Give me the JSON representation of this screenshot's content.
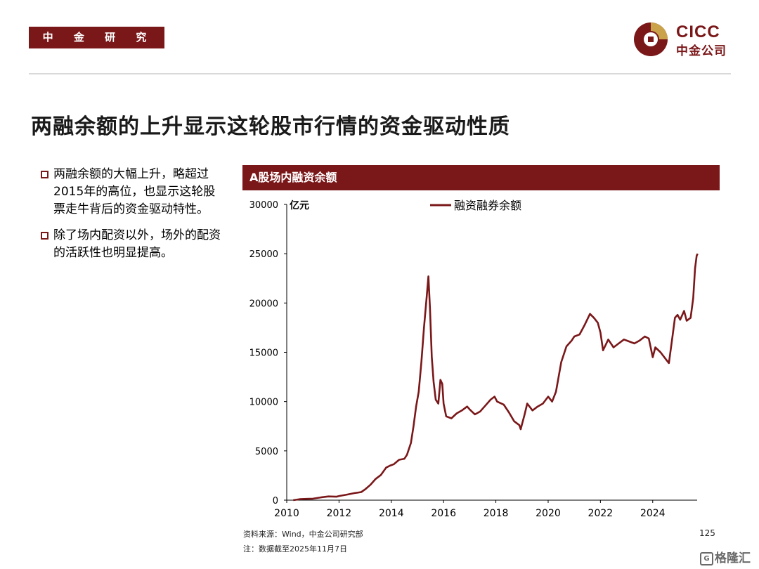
{
  "header": {
    "department": "中 金 研 究 部",
    "logo_en": "CICC",
    "logo_cn": "中金公司",
    "logo_color": "#7a1719"
  },
  "title": "两融余额的上升显示这轮股市行情的资金驱动性质",
  "bullets": [
    "两融余额的大幅上升，略超过2015年的高位，也显示这轮股票走牛背后的资金驱动特性。",
    "除了场内配资以外，场外的配资的活跃性也明显提高。"
  ],
  "chart_header": "A股场内融资余额",
  "chart_data": {
    "type": "line",
    "title": "A股场内融资余额",
    "ylabel": "亿元",
    "xlabel": "",
    "ylim": [
      0,
      30000
    ],
    "xlim": [
      2010,
      2025.7
    ],
    "yticks": [
      0,
      5000,
      10000,
      15000,
      20000,
      25000,
      30000
    ],
    "xticks": [
      2010,
      2012,
      2014,
      2016,
      2018,
      2020,
      2022,
      2024
    ],
    "legend_position": "top",
    "grid": false,
    "series": [
      {
        "name": "融资融券余额",
        "color": "#7a1719",
        "points": [
          [
            2010.25,
            0
          ],
          [
            2010.5,
            100
          ],
          [
            2010.75,
            130
          ],
          [
            2011.0,
            150
          ],
          [
            2011.3,
            280
          ],
          [
            2011.6,
            380
          ],
          [
            2011.9,
            350
          ],
          [
            2012.0,
            420
          ],
          [
            2012.3,
            560
          ],
          [
            2012.6,
            720
          ],
          [
            2012.85,
            820
          ],
          [
            2013.0,
            1100
          ],
          [
            2013.2,
            1550
          ],
          [
            2013.4,
            2150
          ],
          [
            2013.6,
            2550
          ],
          [
            2013.8,
            3300
          ],
          [
            2013.95,
            3500
          ],
          [
            2014.1,
            3650
          ],
          [
            2014.3,
            4100
          ],
          [
            2014.5,
            4200
          ],
          [
            2014.6,
            4600
          ],
          [
            2014.75,
            5800
          ],
          [
            2014.85,
            7500
          ],
          [
            2014.95,
            9500
          ],
          [
            2015.05,
            11000
          ],
          [
            2015.15,
            14000
          ],
          [
            2015.25,
            17500
          ],
          [
            2015.35,
            20500
          ],
          [
            2015.42,
            22700
          ],
          [
            2015.48,
            19500
          ],
          [
            2015.55,
            14500
          ],
          [
            2015.62,
            12000
          ],
          [
            2015.7,
            10200
          ],
          [
            2015.8,
            9800
          ],
          [
            2015.88,
            12200
          ],
          [
            2015.95,
            11800
          ],
          [
            2016.0,
            9800
          ],
          [
            2016.1,
            8500
          ],
          [
            2016.3,
            8300
          ],
          [
            2016.5,
            8800
          ],
          [
            2016.7,
            9100
          ],
          [
            2016.9,
            9500
          ],
          [
            2017.0,
            9200
          ],
          [
            2017.2,
            8700
          ],
          [
            2017.4,
            9000
          ],
          [
            2017.6,
            9600
          ],
          [
            2017.8,
            10200
          ],
          [
            2017.95,
            10500
          ],
          [
            2018.05,
            10000
          ],
          [
            2018.3,
            9700
          ],
          [
            2018.5,
            8900
          ],
          [
            2018.7,
            8000
          ],
          [
            2018.9,
            7600
          ],
          [
            2018.95,
            7200
          ],
          [
            2019.1,
            8700
          ],
          [
            2019.2,
            9800
          ],
          [
            2019.4,
            9100
          ],
          [
            2019.6,
            9500
          ],
          [
            2019.8,
            9800
          ],
          [
            2020.0,
            10500
          ],
          [
            2020.15,
            10000
          ],
          [
            2020.3,
            11000
          ],
          [
            2020.5,
            14000
          ],
          [
            2020.7,
            15600
          ],
          [
            2020.9,
            16200
          ],
          [
            2021.0,
            16600
          ],
          [
            2021.2,
            16800
          ],
          [
            2021.4,
            17800
          ],
          [
            2021.6,
            18900
          ],
          [
            2021.75,
            18500
          ],
          [
            2021.9,
            18000
          ],
          [
            2022.0,
            17000
          ],
          [
            2022.1,
            15200
          ],
          [
            2022.3,
            16300
          ],
          [
            2022.5,
            15500
          ],
          [
            2022.7,
            15900
          ],
          [
            2022.9,
            16300
          ],
          [
            2023.1,
            16100
          ],
          [
            2023.3,
            15900
          ],
          [
            2023.5,
            16200
          ],
          [
            2023.7,
            16600
          ],
          [
            2023.85,
            16400
          ],
          [
            2024.0,
            14500
          ],
          [
            2024.1,
            15500
          ],
          [
            2024.3,
            15000
          ],
          [
            2024.5,
            14300
          ],
          [
            2024.62,
            13900
          ],
          [
            2024.75,
            16500
          ],
          [
            2024.85,
            18500
          ],
          [
            2024.95,
            18800
          ],
          [
            2025.05,
            18300
          ],
          [
            2025.2,
            19200
          ],
          [
            2025.3,
            18200
          ],
          [
            2025.45,
            18500
          ],
          [
            2025.55,
            20500
          ],
          [
            2025.62,
            23500
          ],
          [
            2025.68,
            24800
          ],
          [
            2025.72,
            25000
          ]
        ]
      }
    ]
  },
  "source": "资料来源：Wind，中金公司研究部",
  "note": "注：数据截至2025年11月7日",
  "page_number": "125",
  "watermark_icon": "G",
  "watermark_text": "格隆汇"
}
